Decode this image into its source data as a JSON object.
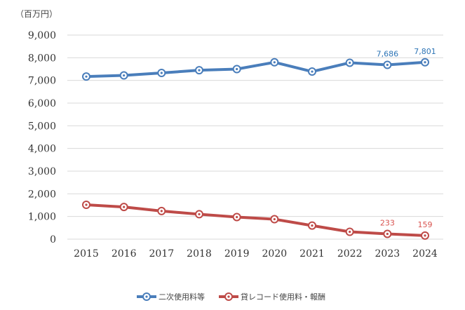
{
  "chart_data": {
    "type": "line",
    "unit_label": "（百万円）",
    "x": [
      "2015",
      "2016",
      "2017",
      "2018",
      "2019",
      "2020",
      "2021",
      "2022",
      "2023",
      "2024"
    ],
    "ylim": [
      0,
      9000
    ],
    "yticks": [
      0,
      1000,
      2000,
      3000,
      4000,
      5000,
      6000,
      7000,
      8000,
      9000
    ],
    "ytick_labels": [
      "0",
      "1,000",
      "2,000",
      "3,000",
      "4,000",
      "5,000",
      "6,000",
      "7,000",
      "8,000",
      "9,000"
    ],
    "grid": true,
    "legend_position": "bottom",
    "series": [
      {
        "name": "二次使用料等",
        "color": "#4a7ebb",
        "label_color": "#2e75b6",
        "values": [
          7170,
          7220,
          7330,
          7450,
          7500,
          7800,
          7390,
          7780,
          7686,
          7801
        ],
        "data_labels": {
          "8": "7,686",
          "9": "7,801"
        }
      },
      {
        "name": "貸レコード使用料・報酬",
        "color": "#be4b48",
        "label_color": "#d9534f",
        "values": [
          1515,
          1420,
          1240,
          1100,
          975,
          880,
          600,
          325,
          233,
          159
        ],
        "data_labels": {
          "8": "233",
          "9": "159"
        }
      }
    ]
  }
}
